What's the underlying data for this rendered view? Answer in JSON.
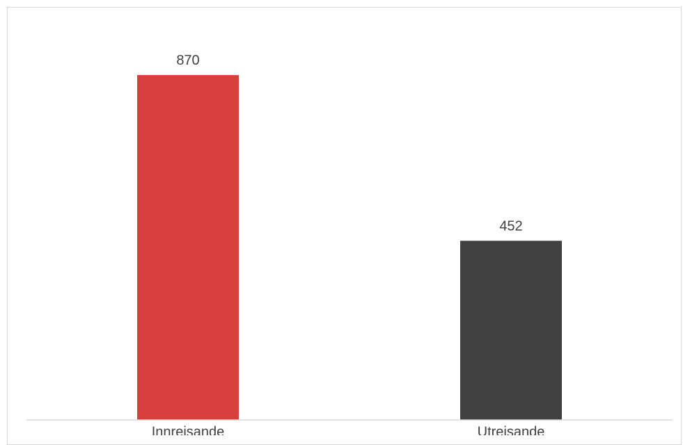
{
  "chart_data": {
    "type": "bar",
    "categories": [
      "Innreisande",
      "Utreisande"
    ],
    "values": [
      870,
      452
    ],
    "colors": [
      "#d93f3c",
      "#404040"
    ],
    "data_labels": [
      "870",
      "452"
    ],
    "title": "",
    "xlabel": "",
    "ylabel": "",
    "ylim": [
      0,
      1000
    ],
    "grid": false,
    "legend": "none"
  }
}
